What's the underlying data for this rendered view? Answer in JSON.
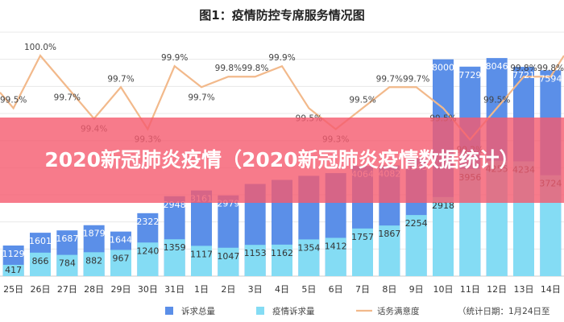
{
  "chart_data": {
    "type": "bar",
    "title": "图1：疫情防控专席服务情况图",
    "categories": [
      "25日",
      "26日",
      "27日",
      "28日",
      "29日",
      "30日",
      "31日",
      "1日",
      "2日",
      "3日",
      "4日",
      "5日",
      "6日",
      "7日",
      "8日",
      "9日",
      "10日",
      "11日",
      "12日",
      "13日",
      "14日"
    ],
    "series": [
      {
        "name": "诉求总量",
        "values": [
          1129,
          1601,
          1687,
          1879,
          1644,
          2322,
          2948,
          3161,
          2979,
          3400,
          3550,
          3700,
          3800,
          4064,
          4082,
          4343,
          8000,
          7729,
          8046,
          7721,
          7594
        ],
        "labels": [
          "1129",
          "1601",
          "1687",
          "1879",
          "1644",
          "2322",
          "2948",
          "3161",
          "2979",
          "",
          "",
          "",
          "",
          "4064",
          "4082",
          "4343",
          "8000",
          "7729",
          "8046",
          "7721",
          "7594"
        ]
      },
      {
        "name": "疫情诉求量",
        "values": [
          417,
          866,
          784,
          882,
          967,
          1240,
          1359,
          1117,
          1047,
          1153,
          1162,
          1354,
          1412,
          1757,
          1867,
          2254,
          2918,
          3956,
          4255,
          4234,
          3724
        ]
      },
      {
        "name": "话务满意度",
        "values": [
          99.5,
          100.0,
          99.7,
          99.4,
          99.7,
          99.3,
          99.9,
          99.7,
          99.8,
          99.8,
          99.9,
          99.5,
          99.3,
          99.5,
          99.7,
          99.7,
          99.5,
          99.2,
          99.5,
          99.8,
          99.8
        ],
        "labels": [
          "99.5%",
          "100.0%",
          "99.7%",
          "99.4%",
          "99.7%",
          "99.3%",
          "99.9%",
          "99.7%",
          "99.8%",
          "99.8%",
          "99.9%",
          "99.5%",
          "99.3%",
          "99.5%",
          "99.7%",
          "99.7%",
          "99.5%",
          "99.2%",
          "99.5%",
          "99.8%",
          "99.8%"
        ]
      }
    ],
    "ylim": [
      0,
      9000
    ],
    "y2lim": [
      98.0,
      100.3
    ],
    "grid": true,
    "legend_position": "bottom",
    "footnote": "（统计日期：1月24日至"
  },
  "banner": {
    "text": "2020新冠肺炎疫情（2020新冠肺炎疫情数据统计）"
  },
  "colors": {
    "total": "#5b8fe8",
    "epidemic": "#84dcf4",
    "satisfaction": "#f2b98b",
    "banner": "#f55a6e"
  }
}
